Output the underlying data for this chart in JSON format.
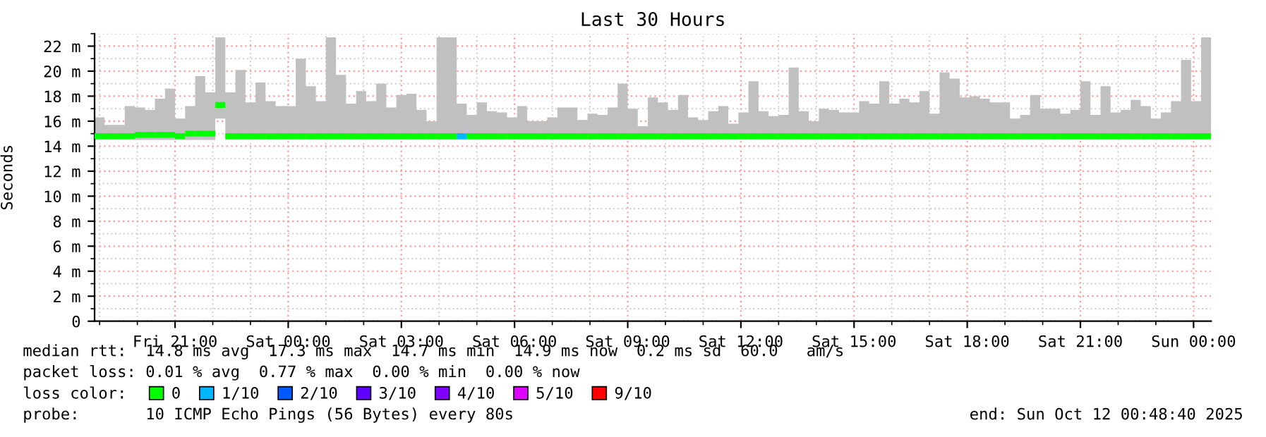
{
  "chart_data": {
    "type": "step",
    "title": "Last 30 Hours",
    "ylabel": "Seconds",
    "legend_title": "loss color:",
    "xlim": [
      "2025-10-10T18:52",
      "2025-10-12T00:28"
    ],
    "xticks": [
      {
        "value": "2025-10-10T21:00",
        "label": "Fri 21:00"
      },
      {
        "value": "2025-10-11T00:00",
        "label": "Sat 00:00"
      },
      {
        "value": "2025-10-11T03:00",
        "label": "Sat 03:00"
      },
      {
        "value": "2025-10-11T06:00",
        "label": "Sat 06:00"
      },
      {
        "value": "2025-10-11T09:00",
        "label": "Sat 09:00"
      },
      {
        "value": "2025-10-11T12:00",
        "label": "Sat 12:00"
      },
      {
        "value": "2025-10-11T15:00",
        "label": "Sat 15:00"
      },
      {
        "value": "2025-10-11T18:00",
        "label": "Sat 18:00"
      },
      {
        "value": "2025-10-11T21:00",
        "label": "Sat 21:00"
      },
      {
        "value": "2025-10-12T00:00",
        "label": "Sun 00:00"
      }
    ],
    "ylim": [
      0,
      23
    ],
    "yticks": [
      0,
      {
        "value": 2,
        "label": "2 m"
      },
      {
        "value": 4,
        "label": "4 m"
      },
      {
        "value": 6,
        "label": "6 m"
      },
      {
        "value": 8,
        "label": "8 m"
      },
      {
        "value": 10,
        "label": "10 m"
      },
      {
        "value": 12,
        "label": "12 m"
      },
      {
        "value": 14,
        "label": "14 m"
      },
      {
        "value": 16,
        "label": "16 m"
      },
      {
        "value": 18,
        "label": "18 m"
      },
      {
        "value": 20,
        "label": "20 m"
      },
      {
        "value": 22,
        "label": "22 m"
      }
    ],
    "grid": true,
    "legend": "bottom",
    "x": [
      "2025-10-10T18:52",
      "2025-10-10T19:08",
      "2025-10-10T19:24",
      "2025-10-10T19:40",
      "2025-10-10T19:56",
      "2025-10-10T20:12",
      "2025-10-10T20:28",
      "2025-10-10T20:44",
      "2025-10-10T21:00",
      "2025-10-10T21:16",
      "2025-10-10T21:32",
      "2025-10-10T21:48",
      "2025-10-10T22:04",
      "2025-10-10T22:20",
      "2025-10-10T22:36",
      "2025-10-10T22:52",
      "2025-10-10T23:08",
      "2025-10-10T23:24",
      "2025-10-10T23:40",
      "2025-10-10T23:56",
      "2025-10-11T00:12",
      "2025-10-11T00:28",
      "2025-10-11T00:44",
      "2025-10-11T01:00",
      "2025-10-11T01:16",
      "2025-10-11T01:32",
      "2025-10-11T01:48",
      "2025-10-11T02:04",
      "2025-10-11T02:20",
      "2025-10-11T02:36",
      "2025-10-11T02:52",
      "2025-10-11T03:08",
      "2025-10-11T03:24",
      "2025-10-11T03:40",
      "2025-10-11T03:56",
      "2025-10-11T04:12",
      "2025-10-11T04:28",
      "2025-10-11T04:44",
      "2025-10-11T05:00",
      "2025-10-11T05:16",
      "2025-10-11T05:32",
      "2025-10-11T05:48",
      "2025-10-11T06:04",
      "2025-10-11T06:20",
      "2025-10-11T06:36",
      "2025-10-11T06:52",
      "2025-10-11T07:08",
      "2025-10-11T07:24",
      "2025-10-11T07:40",
      "2025-10-11T07:56",
      "2025-10-11T08:12",
      "2025-10-11T08:28",
      "2025-10-11T08:44",
      "2025-10-11T09:00",
      "2025-10-11T09:16",
      "2025-10-11T09:32",
      "2025-10-11T09:48",
      "2025-10-11T10:04",
      "2025-10-11T10:20",
      "2025-10-11T10:36",
      "2025-10-11T10:52",
      "2025-10-11T11:08",
      "2025-10-11T11:24",
      "2025-10-11T11:40",
      "2025-10-11T11:56",
      "2025-10-11T12:12",
      "2025-10-11T12:28",
      "2025-10-11T12:44",
      "2025-10-11T13:00",
      "2025-10-11T13:16",
      "2025-10-11T13:32",
      "2025-10-11T13:48",
      "2025-10-11T14:04",
      "2025-10-11T14:20",
      "2025-10-11T14:36",
      "2025-10-11T14:52",
      "2025-10-11T15:08",
      "2025-10-11T15:24",
      "2025-10-11T15:40",
      "2025-10-11T15:56",
      "2025-10-11T16:12",
      "2025-10-11T16:28",
      "2025-10-11T16:44",
      "2025-10-11T17:00",
      "2025-10-11T17:16",
      "2025-10-11T17:32",
      "2025-10-11T17:48",
      "2025-10-11T18:04",
      "2025-10-11T18:20",
      "2025-10-11T18:36",
      "2025-10-11T18:52",
      "2025-10-11T19:08",
      "2025-10-11T19:24",
      "2025-10-11T19:40",
      "2025-10-11T19:56",
      "2025-10-11T20:12",
      "2025-10-11T20:28",
      "2025-10-11T20:44",
      "2025-10-11T21:00",
      "2025-10-11T21:16",
      "2025-10-11T21:32",
      "2025-10-11T21:48",
      "2025-10-11T22:04",
      "2025-10-11T22:20",
      "2025-10-11T22:36",
      "2025-10-11T22:52",
      "2025-10-11T23:08",
      "2025-10-11T23:24",
      "2025-10-11T23:40",
      "2025-10-11T23:56",
      "2025-10-12T00:12",
      "2025-10-12T00:28"
    ],
    "series": [
      {
        "name": "0",
        "color": "#00ff00",
        "values": [
          14.8,
          14.8,
          14.8,
          14.8,
          14.9,
          14.9,
          14.9,
          14.9,
          14.8,
          15.0,
          15.0,
          15.0,
          17.3,
          14.8,
          14.8,
          14.8,
          14.8,
          14.8,
          14.8,
          14.8,
          14.8,
          14.8,
          14.8,
          14.8,
          14.8,
          14.8,
          14.8,
          14.8,
          14.8,
          14.8,
          14.8,
          14.8,
          14.8,
          14.8,
          14.8,
          14.8,
          null,
          14.8,
          14.8,
          14.8,
          14.8,
          14.8,
          14.8,
          14.8,
          14.8,
          14.8,
          14.8,
          14.8,
          14.8,
          14.8,
          14.8,
          14.8,
          14.8,
          14.8,
          14.8,
          14.8,
          14.8,
          14.8,
          14.8,
          14.8,
          14.8,
          14.8,
          14.8,
          14.8,
          14.8,
          14.8,
          14.8,
          14.8,
          14.8,
          14.8,
          14.8,
          14.8,
          14.8,
          14.8,
          14.8,
          14.8,
          14.8,
          14.8,
          14.8,
          14.8,
          14.8,
          14.8,
          14.8,
          14.8,
          14.8,
          14.8,
          14.8,
          14.8,
          14.8,
          14.8,
          14.8,
          14.8,
          14.8,
          14.8,
          14.8,
          14.8,
          14.8,
          14.8,
          14.8,
          14.8,
          14.8,
          14.8,
          14.8,
          14.8,
          14.8,
          14.8,
          14.8,
          14.8,
          14.8,
          14.8,
          14.8,
          14.8
        ],
        "lower": [
          14.5,
          14.5,
          14.5,
          14.5,
          14.5,
          14.5,
          14.5,
          14.5,
          14.5,
          14.5,
          14.5,
          14.5,
          16.2,
          14.5,
          14.5,
          14.5,
          14.5,
          14.5,
          14.5,
          14.5,
          14.5,
          14.5,
          14.5,
          14.5,
          14.5,
          14.5,
          14.5,
          14.5,
          14.5,
          14.5,
          14.5,
          14.5,
          14.5,
          14.5,
          14.5,
          14.5,
          14.5,
          14.5,
          14.5,
          14.5,
          14.5,
          14.5,
          14.5,
          14.5,
          14.5,
          14.5,
          14.5,
          14.5,
          14.5,
          14.5,
          14.5,
          14.5,
          14.5,
          14.5,
          14.5,
          14.5,
          14.5,
          14.5,
          14.5,
          14.5,
          14.5,
          14.5,
          14.5,
          14.5,
          14.5,
          14.5,
          14.5,
          14.5,
          14.5,
          14.5,
          14.5,
          14.5,
          14.5,
          14.5,
          14.5,
          14.5,
          14.5,
          14.5,
          14.5,
          14.5,
          14.5,
          14.5,
          14.5,
          14.5,
          14.5,
          14.5,
          14.5,
          14.5,
          14.5,
          14.5,
          14.5,
          14.5,
          14.5,
          14.5,
          14.5,
          14.5,
          14.5,
          14.5,
          14.5,
          14.5,
          14.5,
          14.5,
          14.5,
          14.5,
          14.5,
          14.5,
          14.5,
          14.5,
          14.5,
          14.5,
          14.5,
          14.5
        ],
        "upper": [
          16.3,
          15.7,
          15.7,
          17.2,
          17.1,
          16.9,
          17.8,
          18.6,
          16.2,
          17.2,
          19.6,
          18.3,
          22.7,
          18.3,
          20.1,
          17.5,
          19.1,
          17.6,
          17.2,
          17.2,
          21.0,
          18.8,
          17.6,
          22.7,
          19.7,
          17.4,
          18.4,
          17.6,
          19.0,
          17.1,
          18.1,
          18.2,
          16.9,
          16.0,
          22.7,
          22.7,
          17.4,
          16.5,
          17.5,
          16.8,
          16.7,
          16.3,
          17.2,
          16.0,
          16.0,
          16.3,
          17.1,
          17.1,
          16.1,
          16.6,
          16.5,
          17.1,
          19.0,
          17.0,
          15.6,
          17.9,
          17.5,
          16.9,
          18.1,
          16.3,
          16.1,
          16.8,
          17.2,
          15.8,
          16.7,
          19.2,
          16.8,
          16.4,
          16.5,
          20.3,
          16.8,
          16.0,
          17.0,
          16.9,
          16.7,
          16.7,
          17.6,
          17.4,
          19.2,
          17.4,
          17.8,
          17.5,
          18.4,
          16.6,
          19.9,
          19.4,
          17.9,
          18.0,
          17.8,
          17.5,
          17.5,
          16.2,
          16.5,
          18.1,
          17.0,
          17.0,
          16.6,
          16.9,
          19.2,
          16.5,
          18.8,
          16.7,
          16.9,
          17.7,
          17.2,
          16.2,
          16.7,
          17.6,
          20.9,
          17.6,
          22.7,
          22.7
        ]
      },
      {
        "name": "1/10",
        "color": "#00b8ff",
        "x": [
          "2025-10-11T04:28",
          "2025-10-11T04:44"
        ],
        "values": [
          14.8,
          14.8
        ]
      },
      {
        "name": "2/10",
        "color": "#0059ff",
        "values": [
          null,
          null,
          null,
          null,
          null,
          null,
          null,
          null,
          null,
          null,
          null,
          null,
          null,
          null,
          null,
          null,
          null,
          null,
          null,
          null,
          null,
          null,
          null,
          null,
          null,
          null,
          null,
          null,
          null,
          null,
          null,
          null,
          null,
          null,
          null,
          null,
          null,
          null,
          null,
          null,
          null,
          null,
          null,
          null,
          null,
          null,
          null,
          null,
          null,
          null,
          null,
          null,
          null,
          null,
          null,
          null,
          null,
          null,
          null,
          null,
          null,
          null,
          null,
          null,
          null,
          null,
          null,
          null,
          null,
          null,
          null,
          null,
          null,
          null,
          null,
          null,
          null,
          null,
          null,
          null,
          null,
          null,
          null,
          null,
          null,
          null,
          null,
          null,
          null,
          null,
          null,
          null,
          null,
          null,
          null,
          null,
          null,
          null,
          null,
          null,
          null,
          null,
          null,
          null,
          null,
          null,
          null,
          null,
          null,
          null,
          null,
          null
        ]
      },
      {
        "name": "3/10",
        "color": "#5e00ff",
        "values": [
          null,
          null,
          null,
          null,
          null,
          null,
          null,
          null,
          null,
          null,
          null,
          null,
          null,
          null,
          null,
          null,
          null,
          null,
          null,
          null,
          null,
          null,
          null,
          null,
          null,
          null,
          null,
          null,
          null,
          null,
          null,
          null,
          null,
          null,
          null,
          null,
          null,
          null,
          null,
          null,
          null,
          null,
          null,
          null,
          null,
          null,
          null,
          null,
          null,
          null,
          null,
          null,
          null,
          null,
          null,
          null,
          null,
          null,
          null,
          null,
          null,
          null,
          null,
          null,
          null,
          null,
          null,
          null,
          null,
          null,
          null,
          null,
          null,
          null,
          null,
          null,
          null,
          null,
          null,
          null,
          null,
          null,
          null,
          null,
          null,
          null,
          null,
          null,
          null,
          null,
          null,
          null,
          null,
          null,
          null,
          null,
          null,
          null,
          null,
          null,
          null,
          null,
          null,
          null,
          null,
          null,
          null,
          null,
          null,
          null,
          null,
          null
        ]
      },
      {
        "name": "4/10",
        "color": "#7e00ff",
        "values": [
          null,
          null,
          null,
          null,
          null,
          null,
          null,
          null,
          null,
          null,
          null,
          null,
          null,
          null,
          null,
          null,
          null,
          null,
          null,
          null,
          null,
          null,
          null,
          null,
          null,
          null,
          null,
          null,
          null,
          null,
          null,
          null,
          null,
          null,
          null,
          null,
          null,
          null,
          null,
          null,
          null,
          null,
          null,
          null,
          null,
          null,
          null,
          null,
          null,
          null,
          null,
          null,
          null,
          null,
          null,
          null,
          null,
          null,
          null,
          null,
          null,
          null,
          null,
          null,
          null,
          null,
          null,
          null,
          null,
          null,
          null,
          null,
          null,
          null,
          null,
          null,
          null,
          null,
          null,
          null,
          null,
          null,
          null,
          null,
          null,
          null,
          null,
          null,
          null,
          null,
          null,
          null,
          null,
          null,
          null,
          null,
          null,
          null,
          null,
          null,
          null,
          null,
          null,
          null,
          null,
          null,
          null,
          null,
          null,
          null,
          null,
          null
        ]
      },
      {
        "name": "5/10",
        "color": "#dd00ff",
        "values": [
          null,
          null,
          null,
          null,
          null,
          null,
          null,
          null,
          null,
          null,
          null,
          null,
          null,
          null,
          null,
          null,
          null,
          null,
          null,
          null,
          null,
          null,
          null,
          null,
          null,
          null,
          null,
          null,
          null,
          null,
          null,
          null,
          null,
          null,
          null,
          null,
          null,
          null,
          null,
          null,
          null,
          null,
          null,
          null,
          null,
          null,
          null,
          null,
          null,
          null,
          null,
          null,
          null,
          null,
          null,
          null,
          null,
          null,
          null,
          null,
          null,
          null,
          null,
          null,
          null,
          null,
          null,
          null,
          null,
          null,
          null,
          null,
          null,
          null,
          null,
          null,
          null,
          null,
          null,
          null,
          null,
          null,
          null,
          null,
          null,
          null,
          null,
          null,
          null,
          null,
          null,
          null,
          null,
          null,
          null,
          null,
          null,
          null,
          null,
          null,
          null,
          null,
          null,
          null,
          null,
          null,
          null,
          null,
          null,
          null,
          null,
          null
        ]
      },
      {
        "name": "9/10",
        "color": "#ff0000",
        "values": [
          null,
          null,
          null,
          null,
          null,
          null,
          null,
          null,
          null,
          null,
          null,
          null,
          null,
          null,
          null,
          null,
          null,
          null,
          null,
          null,
          null,
          null,
          null,
          null,
          null,
          null,
          null,
          null,
          null,
          null,
          null,
          null,
          null,
          null,
          null,
          null,
          null,
          null,
          null,
          null,
          null,
          null,
          null,
          null,
          null,
          null,
          null,
          null,
          null,
          null,
          null,
          null,
          null,
          null,
          null,
          null,
          null,
          null,
          null,
          null,
          null,
          null,
          null,
          null,
          null,
          null,
          null,
          null,
          null,
          null,
          null,
          null,
          null,
          null,
          null,
          null,
          null,
          null,
          null,
          null,
          null,
          null,
          null,
          null,
          null,
          null,
          null,
          null,
          null,
          null,
          null,
          null,
          null,
          null,
          null,
          null,
          null,
          null,
          null,
          null,
          null,
          null,
          null,
          null,
          null,
          null,
          null,
          null,
          null,
          null,
          null,
          null
        ]
      }
    ],
    "annotations": [
      "median rtt:  14.8 ms avg  17.3 ms max  14.7 ms min  14.9 ms now  0.2 ms sd  60.0   am/s",
      "packet loss: 0.01 % avg  0.77 % max  0.00 % min  0.00 % now",
      "probe:       10 ICMP Echo Pings (56 Bytes) every 80s",
      "end: Sun Oct 12 00:48:40 2025"
    ]
  }
}
